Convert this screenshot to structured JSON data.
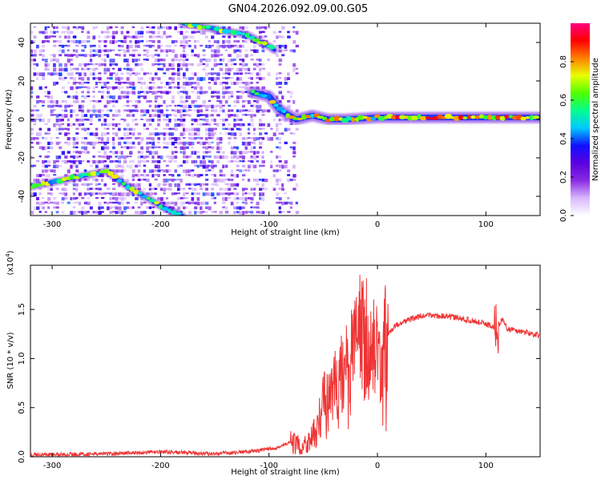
{
  "title": "GN04.2026.092.09.00.G05",
  "chart_data": [
    {
      "type": "heatmap",
      "xlabel": "Height of straight line (km)",
      "ylabel": "Frequency (Hz)",
      "xlim": [
        -320,
        150
      ],
      "ylim": [
        -50,
        50
      ],
      "xticks": [
        -300,
        -200,
        -100,
        0,
        100
      ],
      "yticks": [
        -40,
        -20,
        0,
        20,
        40
      ],
      "colorbar": {
        "label": "Normalized spectral amplitude",
        "range": [
          0,
          1
        ],
        "ticks": [
          "0.0",
          "0.2",
          "0.4",
          "0.6",
          "0.8"
        ],
        "colors": [
          "#ffffff",
          "#d8b8ff",
          "#8a2be2",
          "#5a00e0",
          "#1010ff",
          "#00c8ff",
          "#00ff90",
          "#50ff00",
          "#e8ff00",
          "#ff8000",
          "#ff0000",
          "#ff0080"
        ]
      },
      "ridges": [
        {
          "name": "",
          "points": [
            [
              -180,
              50
            ],
            [
              -120,
              44
            ],
            [
              -100,
              38
            ],
            [
              -95,
              36
            ]
          ]
        },
        {
          "name": "",
          "points": [
            [
              -320,
              -35
            ],
            [
              -250,
              -27
            ],
            [
              -230,
              -35
            ],
            [
              -200,
              -45
            ],
            [
              -180,
              -50
            ]
          ]
        },
        {
          "name": "",
          "points": [
            [
              -115,
              14
            ],
            [
              -100,
              12
            ],
            [
              -90,
              5
            ],
            [
              -75,
              0
            ],
            [
              -60,
              2
            ],
            [
              -45,
              0
            ],
            [
              -30,
              0
            ],
            [
              0,
              1
            ],
            [
              50,
              1
            ],
            [
              100,
              1
            ],
            [
              150,
              1
            ]
          ]
        }
      ],
      "noise_region_x": [
        -320,
        -75
      ]
    },
    {
      "type": "line",
      "xlabel": "Height of straight line (km)",
      "ylabel": "SNR (10 * v/v)",
      "y_multiplier": "(x10^4)",
      "xlim": [
        -320,
        150
      ],
      "ylim": [
        0,
        1.95
      ],
      "xticks": [
        -300,
        -200,
        -100,
        0,
        100
      ],
      "yticks": [
        0.0,
        0.5,
        1.0,
        1.5
      ],
      "color": "#ee3333",
      "x": [
        -320,
        -250,
        -200,
        -150,
        -110,
        -90,
        -80,
        -70,
        -60,
        -55,
        -50,
        -45,
        -40,
        -35,
        -30,
        -25,
        -20,
        -15,
        -10,
        -5,
        0,
        5,
        10,
        15,
        20,
        30,
        40,
        50,
        60,
        70,
        80,
        90,
        100,
        105,
        110,
        115,
        120,
        130,
        140,
        150
      ],
      "y": [
        0.02,
        0.03,
        0.05,
        0.03,
        0.06,
        0.1,
        0.15,
        0.1,
        0.2,
        0.3,
        0.6,
        0.55,
        0.7,
        0.8,
        0.9,
        1.0,
        1.2,
        1.3,
        1.0,
        1.1,
        1.05,
        1.1,
        1.25,
        1.32,
        1.36,
        1.4,
        1.43,
        1.44,
        1.43,
        1.42,
        1.4,
        1.38,
        1.35,
        1.33,
        1.3,
        1.4,
        1.3,
        1.28,
        1.26,
        1.23
      ]
    }
  ]
}
